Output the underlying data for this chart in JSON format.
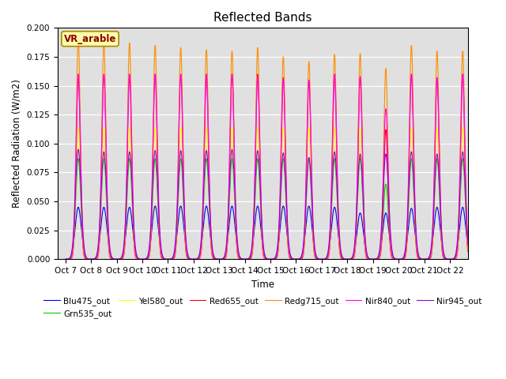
{
  "title": "Reflected Bands",
  "xlabel": "Time",
  "ylabel": "Reflected Radiation (W/m2)",
  "annotation": "VR_arable",
  "ylim": [
    0.0,
    0.2
  ],
  "n_days": 16,
  "series": [
    {
      "label": "Blu475_out",
      "color": "#0000FF",
      "widthfactor": 0.12
    },
    {
      "label": "Grn535_out",
      "color": "#00CC00",
      "widthfactor": 0.1
    },
    {
      "label": "Yel580_out",
      "color": "#FFFF00",
      "widthfactor": 0.09
    },
    {
      "label": "Red655_out",
      "color": "#FF0000",
      "widthfactor": 0.08
    },
    {
      "label": "Redg715_out",
      "color": "#FF8C00",
      "widthfactor": 0.08
    },
    {
      "label": "Nir840_out",
      "color": "#FF00FF",
      "widthfactor": 0.09
    },
    {
      "label": "Nir945_out",
      "color": "#9900CC",
      "widthfactor": 0.11
    }
  ],
  "day_peaks": {
    "Blu475_out": [
      0.045,
      0.045,
      0.045,
      0.046,
      0.046,
      0.046,
      0.046,
      0.046,
      0.046,
      0.046,
      0.045,
      0.04,
      0.04,
      0.044,
      0.045,
      0.045
    ],
    "Grn535_out": [
      0.087,
      0.087,
      0.087,
      0.087,
      0.087,
      0.087,
      0.087,
      0.087,
      0.087,
      0.087,
      0.087,
      0.087,
      0.065,
      0.087,
      0.087,
      0.087
    ],
    "Yel580_out": [
      0.114,
      0.114,
      0.114,
      0.114,
      0.114,
      0.114,
      0.114,
      0.114,
      0.114,
      0.114,
      0.114,
      0.114,
      0.114,
      0.114,
      0.114,
      0.114
    ],
    "Red655_out": [
      0.16,
      0.16,
      0.16,
      0.16,
      0.16,
      0.16,
      0.16,
      0.16,
      0.157,
      0.155,
      0.16,
      0.158,
      0.112,
      0.16,
      0.157,
      0.16
    ],
    "Redg715_out": [
      0.19,
      0.188,
      0.187,
      0.185,
      0.183,
      0.181,
      0.18,
      0.183,
      0.175,
      0.171,
      0.177,
      0.178,
      0.165,
      0.185,
      0.18,
      0.18
    ],
    "Nir840_out": [
      0.16,
      0.16,
      0.16,
      0.16,
      0.16,
      0.16,
      0.16,
      0.158,
      0.156,
      0.155,
      0.16,
      0.158,
      0.13,
      0.16,
      0.157,
      0.16
    ],
    "Nir945_out": [
      0.095,
      0.093,
      0.093,
      0.094,
      0.094,
      0.094,
      0.095,
      0.094,
      0.092,
      0.088,
      0.093,
      0.091,
      0.091,
      0.093,
      0.091,
      0.093
    ]
  },
  "xtick_labels": [
    "Oct 7",
    "Oct 8",
    "Oct 9",
    "Oct 10",
    "Oct 11",
    "Oct 12",
    "Oct 13",
    "Oct 14",
    "Oct 15",
    "Oct 16",
    "Oct 17",
    "Oct 18",
    "Oct 19",
    "Oct 20",
    "Oct 21",
    "Oct 22"
  ],
  "bg_color": "#E0E0E0"
}
